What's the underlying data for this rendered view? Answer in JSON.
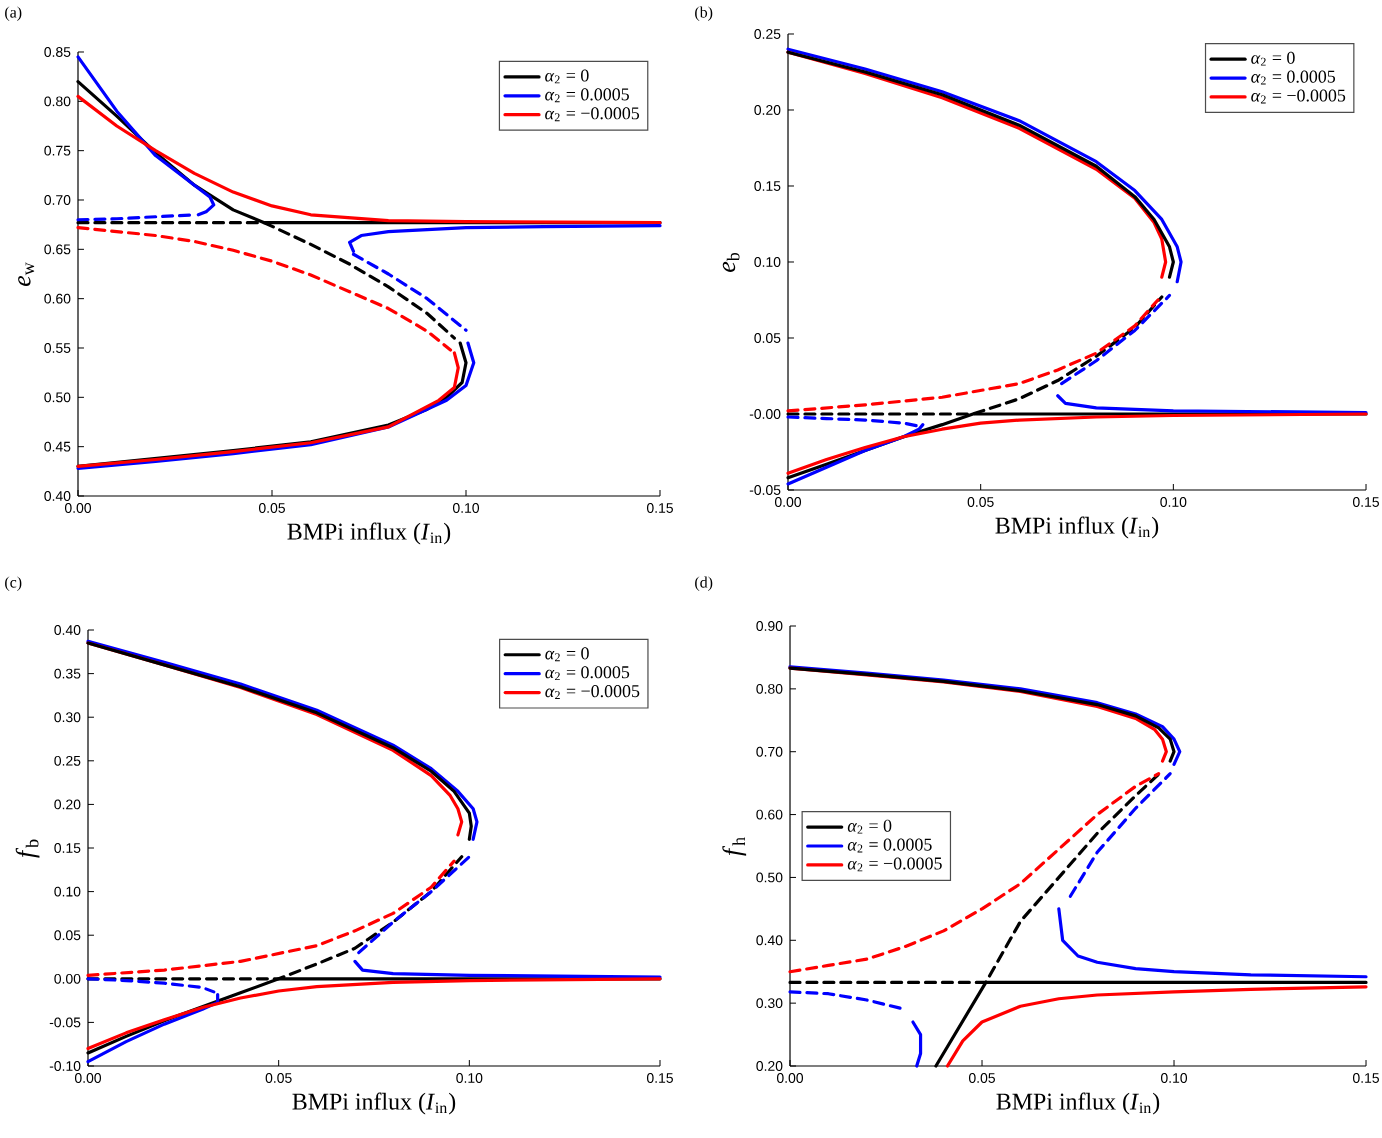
{
  "chart_data": [
    {
      "type": "line",
      "title": "(a)",
      "xlabel": "BMPi influx (*I*$_{in}$)",
      "ylabel": "*e*$_{w}$",
      "legend": "top right",
      "xlim": [
        0,
        0.15
      ],
      "xticks": [
        {
          "value": 0,
          "label": "0.00"
        },
        {
          "value": 0.05,
          "label": "0.05"
        },
        {
          "value": 0.1,
          "label": "0.10"
        },
        {
          "value": 0.15,
          "label": "0.15"
        }
      ],
      "ylim": [
        0.4,
        0.85
      ],
      "yticks": [
        {
          "value": 0.4,
          "label": "0.40"
        },
        {
          "value": 0.45,
          "label": "0.45"
        },
        {
          "value": 0.5,
          "label": "0.50"
        },
        {
          "value": 0.55,
          "label": "0.55"
        },
        {
          "value": 0.6,
          "label": "0.60"
        },
        {
          "value": 0.65,
          "label": "0.65"
        },
        {
          "value": 0.7,
          "label": "0.70"
        },
        {
          "value": 0.75,
          "label": "0.75"
        },
        {
          "value": 0.8,
          "label": "0.80"
        },
        {
          "value": 0.85,
          "label": "0.85"
        }
      ],
      "series": [
        {
          "name": "*α*$_{2}$ = 0",
          "color": "#000000",
          "line_style": "solid",
          "x": [
            0,
            0.01,
            0.02,
            0.03,
            0.04,
            0.048,
            0.15
          ],
          "values": [
            0.82,
            0.785,
            0.748,
            0.715,
            0.69,
            0.677,
            0.677
          ]
        },
        {
          "name": "*α*$_{2}$ = 0.0005",
          "color": "#0000ff",
          "line_style": "solid",
          "x": [
            0,
            0.01,
            0.02,
            0.03,
            0.034,
            0.035,
            0.033,
            0.031
          ],
          "values": [
            0.845,
            0.79,
            0.745,
            0.715,
            0.703,
            0.695,
            0.688,
            0.685
          ]
        },
        {
          "name": "*α*$_{2}$ = −0.0005",
          "color": "#ff0000",
          "line_style": "solid",
          "x": [
            0,
            0.01,
            0.02,
            0.03,
            0.04,
            0.05,
            0.06,
            0.08,
            0.1,
            0.15
          ],
          "values": [
            0.805,
            0.775,
            0.75,
            0.727,
            0.708,
            0.694,
            0.685,
            0.679,
            0.678,
            0.677
          ]
        },
        {
          "color": "#000000",
          "line_style": "dashed",
          "x": [
            0,
            0.048,
            0.06,
            0.07,
            0.08,
            0.09,
            0.097
          ],
          "values": [
            0.677,
            0.677,
            0.655,
            0.635,
            0.612,
            0.585,
            0.56
          ]
        },
        {
          "color": "#000000",
          "line_style": "solid",
          "x": [
            0.0985,
            0.1,
            0.099,
            0.095,
            0.09,
            0.08,
            0.06,
            0.04,
            0.02,
            0
          ],
          "values": [
            0.555,
            0.535,
            0.515,
            0.5,
            0.488,
            0.472,
            0.455,
            0.446,
            0.438,
            0.43
          ]
        },
        {
          "color": "#0000ff",
          "line_style": "dashed",
          "x": [
            0,
            0.01,
            0.02,
            0.03
          ],
          "values": [
            0.68,
            0.681,
            0.683,
            0.685
          ]
        },
        {
          "color": "#0000ff",
          "line_style": "solid",
          "x": [
            0.15,
            0.12,
            0.1,
            0.08,
            0.073,
            0.07,
            0.071
          ],
          "values": [
            0.674,
            0.673,
            0.672,
            0.668,
            0.664,
            0.657,
            0.648
          ]
        },
        {
          "color": "#0000ff",
          "line_style": "dashed",
          "x": [
            0.071,
            0.08,
            0.09,
            0.1
          ],
          "values": [
            0.645,
            0.625,
            0.6,
            0.568
          ]
        },
        {
          "color": "#0000ff",
          "line_style": "solid",
          "x": [
            0.1005,
            0.102,
            0.1,
            0.095,
            0.08,
            0.06,
            0.04,
            0.02,
            0
          ],
          "values": [
            0.555,
            0.535,
            0.512,
            0.497,
            0.47,
            0.452,
            0.443,
            0.435,
            0.428
          ]
        },
        {
          "color": "#ff0000",
          "line_style": "dashed",
          "x": [
            0,
            0.01,
            0.02,
            0.03,
            0.04,
            0.05,
            0.06,
            0.07,
            0.08,
            0.09,
            0.096
          ],
          "values": [
            0.672,
            0.668,
            0.664,
            0.658,
            0.649,
            0.638,
            0.624,
            0.607,
            0.59,
            0.567,
            0.548
          ]
        },
        {
          "color": "#ff0000",
          "line_style": "solid",
          "x": [
            0.097,
            0.098,
            0.097,
            0.093,
            0.08,
            0.06,
            0.04,
            0.02,
            0
          ],
          "values": [
            0.545,
            0.53,
            0.51,
            0.497,
            0.47,
            0.454,
            0.445,
            0.437,
            0.43
          ]
        }
      ]
    },
    {
      "type": "line",
      "title": "(b)",
      "xlabel": "BMPi influx (*I*$_{in}$)",
      "ylabel": "*e*$_{b}$",
      "legend": "top right",
      "xlim": [
        0,
        0.15
      ],
      "xticks": [
        {
          "value": 0,
          "label": "0.00"
        },
        {
          "value": 0.05,
          "label": "0.05"
        },
        {
          "value": 0.1,
          "label": "0.10"
        },
        {
          "value": 0.15,
          "label": "0.15"
        }
      ],
      "ylim": [
        -0.05,
        0.25
      ],
      "yticks": [
        {
          "value": -0.05,
          "label": "-0.05"
        },
        {
          "value": 0,
          "label": "-0.00"
        },
        {
          "value": 0.05,
          "label": "0.05"
        },
        {
          "value": 0.1,
          "label": "0.10"
        },
        {
          "value": 0.15,
          "label": "0.15"
        },
        {
          "value": 0.2,
          "label": "0.20"
        },
        {
          "value": 0.25,
          "label": "0.25"
        }
      ],
      "series": [
        {
          "name": "*α*$_{2}$ = 0",
          "color": "#000000",
          "line_style": "solid",
          "x": [
            0,
            0.01,
            0.02,
            0.03,
            0.04,
            0.048,
            0.15
          ],
          "values": [
            -0.042,
            -0.033,
            -0.024,
            -0.015,
            -0.007,
            0,
            0
          ]
        },
        {
          "name": "*α*$_{2}$ = 0.0005",
          "color": "#0000ff",
          "line_style": "solid",
          "x": [
            0,
            0.02,
            0.04,
            0.06,
            0.08,
            0.09,
            0.097,
            0.101,
            0.102,
            0.101
          ],
          "values": [
            0.24,
            0.227,
            0.212,
            0.193,
            0.166,
            0.147,
            0.128,
            0.11,
            0.1,
            0.087
          ]
        },
        {
          "name": "*α*$_{2}$ = −0.0005",
          "color": "#ff0000",
          "line_style": "solid",
          "x": [
            0,
            0.02,
            0.04,
            0.06,
            0.08,
            0.09,
            0.095,
            0.097,
            0.098,
            0.097
          ],
          "values": [
            0.238,
            0.224,
            0.208,
            0.188,
            0.161,
            0.142,
            0.126,
            0.115,
            0.1,
            0.09
          ]
        },
        {
          "color": "#000000",
          "line_style": "solid",
          "x": [
            0,
            0.02,
            0.04,
            0.06,
            0.08,
            0.09,
            0.095,
            0.099,
            0.1,
            0.099
          ],
          "values": [
            0.238,
            0.225,
            0.21,
            0.19,
            0.163,
            0.143,
            0.128,
            0.11,
            0.1,
            0.09
          ]
        },
        {
          "color": "#000000",
          "line_style": "dashed",
          "x": [
            0,
            0.048,
            0.06,
            0.07,
            0.08,
            0.09,
            0.097
          ],
          "values": [
            0,
            0,
            0.01,
            0.022,
            0.038,
            0.057,
            0.077
          ]
        },
        {
          "color": "#0000ff",
          "line_style": "dashed",
          "x": [
            0.071,
            0.08,
            0.09,
            0.099
          ],
          "values": [
            0.02,
            0.035,
            0.055,
            0.078
          ]
        },
        {
          "color": "#0000ff",
          "line_style": "solid",
          "x": [
            0.07,
            0.072,
            0.08,
            0.1,
            0.15
          ],
          "values": [
            0.012,
            0.007,
            0.004,
            0.002,
            0.001
          ]
        },
        {
          "color": "#0000ff",
          "line_style": "dashed",
          "x": [
            0,
            0.01,
            0.02,
            0.03,
            0.034
          ],
          "values": [
            -0.002,
            -0.003,
            -0.004,
            -0.006,
            -0.008
          ]
        },
        {
          "color": "#0000ff",
          "line_style": "solid",
          "x": [
            0,
            0.01,
            0.02,
            0.03,
            0.034,
            0.035
          ],
          "values": [
            -0.046,
            -0.035,
            -0.024,
            -0.015,
            -0.01,
            -0.007
          ]
        },
        {
          "color": "#ff0000",
          "line_style": "dashed",
          "x": [
            0,
            0.02,
            0.04,
            0.06,
            0.07,
            0.08,
            0.09,
            0.096
          ],
          "values": [
            0.002,
            0.006,
            0.011,
            0.02,
            0.029,
            0.04,
            0.058,
            0.075
          ]
        },
        {
          "color": "#ff0000",
          "line_style": "solid",
          "x": [
            0,
            0.01,
            0.02,
            0.03,
            0.04,
            0.05,
            0.06,
            0.08,
            0.1,
            0.15
          ],
          "values": [
            -0.039,
            -0.03,
            -0.022,
            -0.015,
            -0.01,
            -0.006,
            -0.004,
            -0.002,
            -0.001,
            0
          ]
        }
      ]
    },
    {
      "type": "line",
      "title": "(c)",
      "xlabel": "BMPi influx (*I*$_{in}$)",
      "ylabel": "*f*$_{b}$",
      "legend": "top right",
      "xlim": [
        0,
        0.15
      ],
      "xticks": [
        {
          "value": 0,
          "label": "0.00"
        },
        {
          "value": 0.05,
          "label": "0.05"
        },
        {
          "value": 0.1,
          "label": "0.10"
        },
        {
          "value": 0.15,
          "label": "0.15"
        }
      ],
      "ylim": [
        -0.1,
        0.4
      ],
      "yticks": [
        {
          "value": -0.1,
          "label": "-0.10"
        },
        {
          "value": -0.05,
          "label": "-0.05"
        },
        {
          "value": 0,
          "label": "0.00"
        },
        {
          "value": 0.05,
          "label": "0.05"
        },
        {
          "value": 0.1,
          "label": "0.10"
        },
        {
          "value": 0.15,
          "label": "0.15"
        },
        {
          "value": 0.2,
          "label": "0.20"
        },
        {
          "value": 0.25,
          "label": "0.25"
        },
        {
          "value": 0.3,
          "label": "0.30"
        },
        {
          "value": 0.35,
          "label": "0.35"
        },
        {
          "value": 0.4,
          "label": "0.40"
        }
      ],
      "series": [
        {
          "name": "*α*$_{2}$ = 0",
          "color": "#000000",
          "line_style": "solid",
          "x": [
            0,
            0.01,
            0.02,
            0.03,
            0.04,
            0.05,
            0.15
          ],
          "values": [
            -0.085,
            -0.066,
            -0.048,
            -0.032,
            -0.016,
            0,
            0
          ]
        },
        {
          "name": "*α*$_{2}$ = 0.0005",
          "color": "#0000ff",
          "line_style": "solid",
          "x": [
            0,
            0.02,
            0.04,
            0.06,
            0.08,
            0.09,
            0.097,
            0.101,
            0.102,
            0.101
          ],
          "values": [
            0.387,
            0.363,
            0.338,
            0.308,
            0.268,
            0.241,
            0.215,
            0.195,
            0.18,
            0.16
          ]
        },
        {
          "name": "*α*$_{2}$ = −0.0005",
          "color": "#ff0000",
          "line_style": "solid",
          "x": [
            0,
            0.02,
            0.04,
            0.06,
            0.08,
            0.09,
            0.095,
            0.097,
            0.098,
            0.097
          ],
          "values": [
            0.385,
            0.36,
            0.334,
            0.303,
            0.262,
            0.233,
            0.21,
            0.195,
            0.18,
            0.165
          ]
        },
        {
          "color": "#000000",
          "line_style": "solid",
          "x": [
            0,
            0.02,
            0.04,
            0.06,
            0.08,
            0.09,
            0.096,
            0.1,
            0.1005,
            0.1
          ],
          "values": [
            0.385,
            0.36,
            0.335,
            0.305,
            0.265,
            0.238,
            0.215,
            0.19,
            0.175,
            0.16
          ]
        },
        {
          "color": "#000000",
          "line_style": "dashed",
          "x": [
            0,
            0.05,
            0.06,
            0.07,
            0.08,
            0.09,
            0.098
          ],
          "values": [
            0,
            0,
            0.017,
            0.035,
            0.065,
            0.1,
            0.14
          ]
        },
        {
          "color": "#0000ff",
          "line_style": "dashed",
          "x": [
            0.071,
            0.08,
            0.09,
            0.1
          ],
          "values": [
            0.03,
            0.065,
            0.1,
            0.14
          ]
        },
        {
          "color": "#0000ff",
          "line_style": "solid",
          "x": [
            0.07,
            0.072,
            0.08,
            0.1,
            0.15
          ],
          "values": [
            0.02,
            0.01,
            0.006,
            0.004,
            0.002
          ]
        },
        {
          "color": "#0000ff",
          "line_style": "dashed",
          "x": [
            0,
            0.01,
            0.02,
            0.03,
            0.033
          ],
          "values": [
            0,
            -0.002,
            -0.005,
            -0.01,
            -0.015
          ]
        },
        {
          "color": "#0000ff",
          "line_style": "solid",
          "x": [
            0,
            0.01,
            0.02,
            0.03,
            0.034,
            0.034
          ],
          "values": [
            -0.095,
            -0.072,
            -0.052,
            -0.035,
            -0.027,
            -0.018
          ]
        },
        {
          "color": "#ff0000",
          "line_style": "dashed",
          "x": [
            0,
            0.02,
            0.04,
            0.06,
            0.07,
            0.08,
            0.09,
            0.096
          ],
          "values": [
            0.004,
            0.01,
            0.02,
            0.038,
            0.055,
            0.075,
            0.105,
            0.135
          ]
        },
        {
          "color": "#ff0000",
          "line_style": "solid",
          "x": [
            0,
            0.01,
            0.02,
            0.03,
            0.04,
            0.05,
            0.06,
            0.08,
            0.1,
            0.15
          ],
          "values": [
            -0.08,
            -0.062,
            -0.047,
            -0.033,
            -0.022,
            -0.014,
            -0.009,
            -0.004,
            -0.002,
            0
          ]
        }
      ]
    },
    {
      "type": "line",
      "title": "(d)",
      "xlabel": "BMPi influx (*I*$_{in}$)",
      "ylabel": "*f*$_{h}$",
      "legend": "left",
      "xlim": [
        0,
        0.15
      ],
      "xticks": [
        {
          "value": 0,
          "label": "0.00"
        },
        {
          "value": 0.05,
          "label": "0.05"
        },
        {
          "value": 0.1,
          "label": "0.10"
        },
        {
          "value": 0.15,
          "label": "0.15"
        }
      ],
      "ylim": [
        0.2,
        0.9
      ],
      "yticks": [
        {
          "value": 0.2,
          "label": "0.20"
        },
        {
          "value": 0.3,
          "label": "0.30"
        },
        {
          "value": 0.4,
          "label": "0.40"
        },
        {
          "value": 0.5,
          "label": "0.50"
        },
        {
          "value": 0.6,
          "label": "0.60"
        },
        {
          "value": 0.7,
          "label": "0.70"
        },
        {
          "value": 0.8,
          "label": "0.80"
        },
        {
          "value": 0.9,
          "label": "0.90"
        }
      ],
      "series": [
        {
          "name": "*α*$_{2}$ = 0",
          "color": "#000000",
          "line_style": "solid",
          "x": [
            0.038,
            0.051,
            0.15
          ],
          "values": [
            0.2,
            0.333,
            0.333
          ]
        },
        {
          "name": "*α*$_{2}$ = 0.0005",
          "color": "#0000ff",
          "line_style": "solid",
          "x": [
            0,
            0.02,
            0.04,
            0.06,
            0.08,
            0.09,
            0.097,
            0.1,
            0.1015,
            0.1
          ],
          "values": [
            0.835,
            0.825,
            0.814,
            0.8,
            0.778,
            0.76,
            0.74,
            0.72,
            0.7,
            0.68
          ]
        },
        {
          "name": "*α*$_{2}$ = −0.0005",
          "color": "#ff0000",
          "line_style": "solid",
          "x": [
            0,
            0.02,
            0.04,
            0.06,
            0.08,
            0.09,
            0.095,
            0.097,
            0.098,
            0.097
          ],
          "values": [
            0.833,
            0.822,
            0.811,
            0.796,
            0.772,
            0.753,
            0.735,
            0.72,
            0.7,
            0.685
          ]
        },
        {
          "color": "#000000",
          "line_style": "solid",
          "x": [
            0,
            0.02,
            0.04,
            0.06,
            0.08,
            0.09,
            0.096,
            0.099,
            0.1,
            0.099
          ],
          "values": [
            0.833,
            0.823,
            0.812,
            0.797,
            0.775,
            0.757,
            0.738,
            0.72,
            0.7,
            0.685
          ]
        },
        {
          "color": "#000000",
          "line_style": "dashed",
          "x": [
            0,
            0.051,
            0.06,
            0.07,
            0.08,
            0.09,
            0.097
          ],
          "values": [
            0.333,
            0.333,
            0.43,
            0.5,
            0.57,
            0.63,
            0.67
          ]
        },
        {
          "color": "#0000ff",
          "line_style": "dashed",
          "x": [
            0.073,
            0.08,
            0.09,
            0.099
          ],
          "values": [
            0.47,
            0.54,
            0.61,
            0.665
          ]
        },
        {
          "color": "#0000ff",
          "line_style": "solid",
          "x": [
            0.07,
            0.071,
            0.075,
            0.08,
            0.09,
            0.1,
            0.12,
            0.15
          ],
          "values": [
            0.45,
            0.4,
            0.375,
            0.365,
            0.355,
            0.35,
            0.345,
            0.342
          ]
        },
        {
          "color": "#0000ff",
          "line_style": "dashed",
          "x": [
            0,
            0.01,
            0.02,
            0.03
          ],
          "values": [
            0.318,
            0.315,
            0.305,
            0.29
          ]
        },
        {
          "color": "#0000ff",
          "line_style": "solid",
          "x": [
            0.032,
            0.034,
            0.034,
            0.033
          ],
          "values": [
            0.27,
            0.25,
            0.22,
            0.2
          ]
        },
        {
          "color": "#ff0000",
          "line_style": "dashed",
          "x": [
            0,
            0.01,
            0.02,
            0.03,
            0.04,
            0.05,
            0.06,
            0.07,
            0.08,
            0.09,
            0.096
          ],
          "values": [
            0.35,
            0.36,
            0.37,
            0.39,
            0.415,
            0.45,
            0.49,
            0.545,
            0.6,
            0.645,
            0.665
          ]
        },
        {
          "color": "#ff0000",
          "line_style": "solid",
          "x": [
            0.041,
            0.045,
            0.05,
            0.06,
            0.07,
            0.08,
            0.1,
            0.12,
            0.15
          ],
          "values": [
            0.2,
            0.24,
            0.27,
            0.295,
            0.307,
            0.313,
            0.318,
            0.322,
            0.326
          ]
        }
      ]
    }
  ]
}
